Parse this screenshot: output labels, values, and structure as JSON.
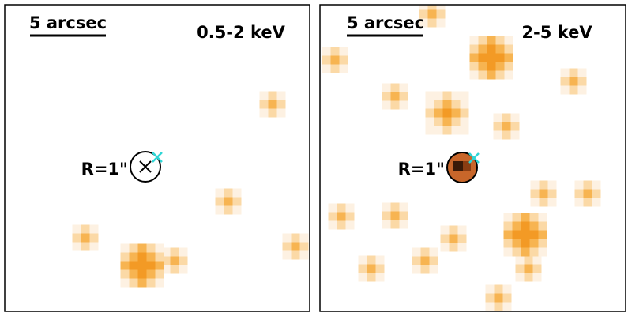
{
  "panels": [
    {
      "scale_label": "5 arcsec",
      "band": "0.5-2 keV",
      "radius_label": "R=1\""
    },
    {
      "scale_label": "5 arcsec",
      "band": "2-5 keV",
      "radius_label": "R=1\""
    }
  ]
}
